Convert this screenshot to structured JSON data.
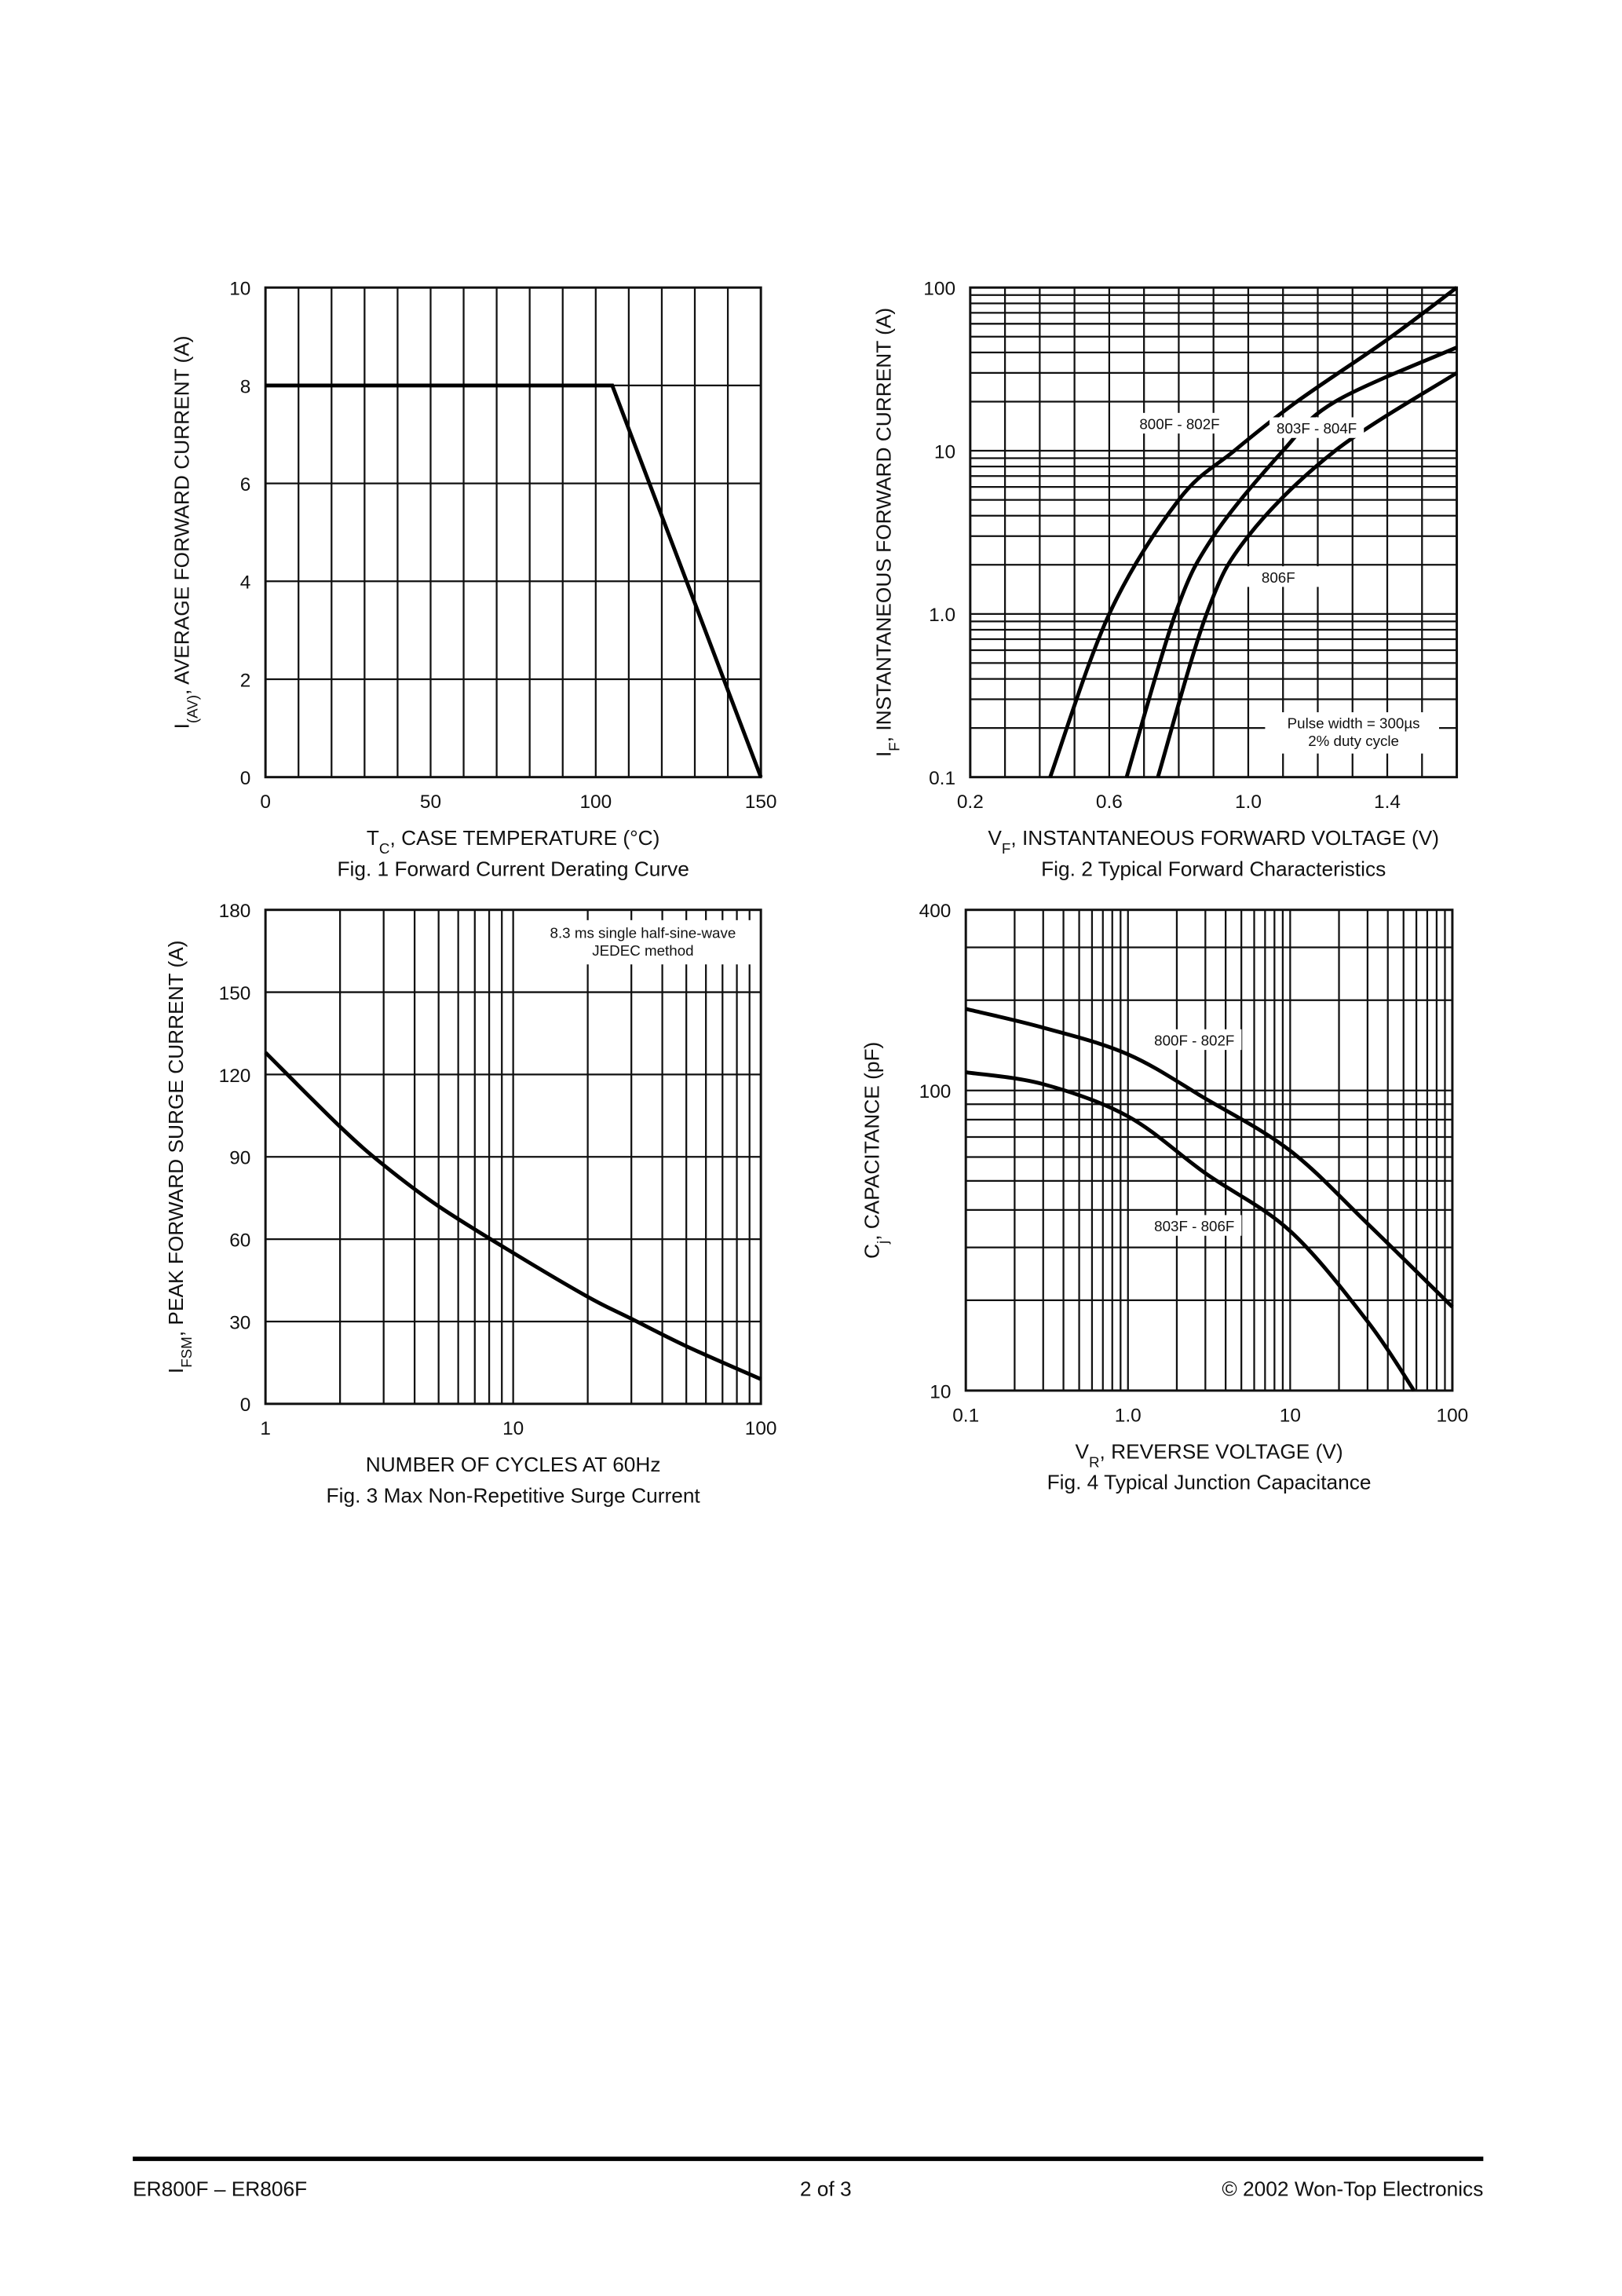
{
  "chart_data": [
    {
      "type": "line",
      "curve": "straight",
      "xlabel": [
        "T",
        "C",
        ", CASE TEMPERATURE (°C)"
      ],
      "ylabel": [
        "I",
        "(AV)",
        ", AVERAGE FORWARD CURRENT (A)"
      ],
      "caption": "Fig. 1  Forward Current Derating Curve",
      "xlim": [
        0,
        150
      ],
      "xticks": [
        0,
        50,
        100,
        150
      ],
      "xgrid": [
        10,
        20,
        30,
        40,
        60,
        70,
        80,
        90,
        110,
        120,
        130,
        140
      ],
      "ylim": [
        0,
        10
      ],
      "yticks": [
        0,
        2,
        4,
        6,
        8,
        10
      ],
      "series": [
        {
          "color": "#000000",
          "x": [
            0,
            105,
            150
          ],
          "values": [
            8,
            8,
            0
          ]
        }
      ]
    },
    {
      "type": "line",
      "curve": "smooth",
      "yscale": "log",
      "xlabel": [
        "V",
        "F",
        ", INSTANTANEOUS FORWARD VOLTAGE (V)"
      ],
      "ylabel": [
        "I",
        "F",
        ", INSTANTANEOUS FORWARD CURRENT (A)"
      ],
      "caption": "Fig. 2  Typical Forward Characteristics",
      "note": [
        "Pulse width = 300µs",
        "2% duty cycle"
      ],
      "xlim": [
        0.2,
        1.6
      ],
      "xticks": [
        0.2,
        0.6,
        {
          "value": 1,
          "label": "1.0"
        },
        1.4
      ],
      "xgrid": [
        0.3,
        0.4,
        0.5,
        0.7,
        0.8,
        0.9,
        1.1,
        1.2,
        1.3,
        1.5
      ],
      "ylim": [
        0.1,
        100
      ],
      "yticks": [
        0.1,
        {
          "value": 1,
          "label": "1.0"
        },
        10,
        100
      ],
      "ygrid": [
        0.2,
        0.3,
        0.4,
        0.5,
        0.6,
        0.7,
        0.8,
        0.9,
        2,
        3,
        4,
        5,
        6,
        7,
        8,
        9,
        20,
        30,
        40,
        50,
        60,
        70,
        80,
        90
      ],
      "series": [
        {
          "name": "800F - 802F",
          "color": "#000000",
          "x": [
            0.43,
            0.6,
            0.8,
            0.96,
            1.14,
            1.4,
            1.6
          ],
          "values": [
            0.1,
            1,
            5,
            10,
            20,
            48,
            100
          ]
        },
        {
          "name": "803F - 804F",
          "color": "#000000",
          "x": [
            0.65,
            0.79,
            0.9,
            1.1,
            1.25,
            1.6
          ],
          "values": [
            0.1,
            1,
            3,
            10,
            20,
            43
          ]
        },
        {
          "name": "806F",
          "color": "#000000",
          "x": [
            0.74,
            0.88,
            1.0,
            1.25,
            1.6
          ],
          "values": [
            0.1,
            1,
            3,
            10,
            30
          ]
        }
      ]
    },
    {
      "type": "line",
      "curve": "smooth",
      "xscale": "log",
      "xlabel": "NUMBER OF CYCLES AT 60Hz",
      "ylabel": [
        "I",
        "FSM",
        ", PEAK FORWARD SURGE CURRENT (A)"
      ],
      "caption": "Fig. 3  Max Non-Repetitive Surge Current",
      "note": [
        "8.3 ms single half-sine-wave",
        "JEDEC method"
      ],
      "xlim": [
        1,
        100
      ],
      "xticks": [
        1,
        10,
        100
      ],
      "xgrid": [
        2,
        3,
        4,
        5,
        6,
        7,
        8,
        9,
        20,
        30,
        40,
        50,
        60,
        70,
        80,
        90
      ],
      "ylim": [
        0,
        180
      ],
      "yticks": [
        0,
        30,
        60,
        90,
        120,
        150,
        180
      ],
      "series": [
        {
          "color": "#000000",
          "x": [
            1,
            2,
            3,
            5,
            10,
            20,
            30,
            50,
            100
          ],
          "values": [
            128,
            101,
            87,
            72,
            55,
            39,
            31,
            21,
            9
          ]
        }
      ]
    },
    {
      "type": "line",
      "curve": "smooth",
      "xscale": "log",
      "yscale": "log",
      "xlabel": [
        "V",
        "R",
        ", REVERSE VOLTAGE (V)"
      ],
      "ylabel": [
        "C",
        "j",
        ", CAPACITANCE (pF)"
      ],
      "caption": "Fig. 4  Typical Junction Capacitance",
      "xlim": [
        0.1,
        100
      ],
      "xticks": [
        0.1,
        {
          "value": 1,
          "label": "1.0"
        },
        10,
        100
      ],
      "xgrid": [
        0.2,
        0.3,
        0.4,
        0.5,
        0.6,
        0.7,
        0.8,
        0.9,
        2,
        3,
        4,
        5,
        6,
        7,
        8,
        9,
        20,
        30,
        40,
        50,
        60,
        70,
        80,
        90
      ],
      "ylim": [
        10,
        400
      ],
      "yticks": [
        10,
        100,
        400
      ],
      "ygrid": [
        20,
        30,
        40,
        50,
        60,
        70,
        80,
        90,
        200,
        300
      ],
      "series": [
        {
          "name": "800F - 802F",
          "color": "#000000",
          "x": [
            0.1,
            0.3,
            1,
            3,
            10,
            30,
            100
          ],
          "values": [
            187,
            162,
            132,
            94,
            63,
            36,
            19
          ]
        },
        {
          "name": "803F - 806F",
          "color": "#000000",
          "x": [
            0.1,
            0.3,
            1,
            3,
            10,
            30,
            58
          ],
          "values": [
            115,
            105,
            82,
            53,
            34,
            17,
            10
          ]
        }
      ]
    }
  ],
  "footer": {
    "left": "ER800F – ER806F",
    "center": "2 of 3",
    "right": "© 2002 Won-Top Electronics"
  }
}
